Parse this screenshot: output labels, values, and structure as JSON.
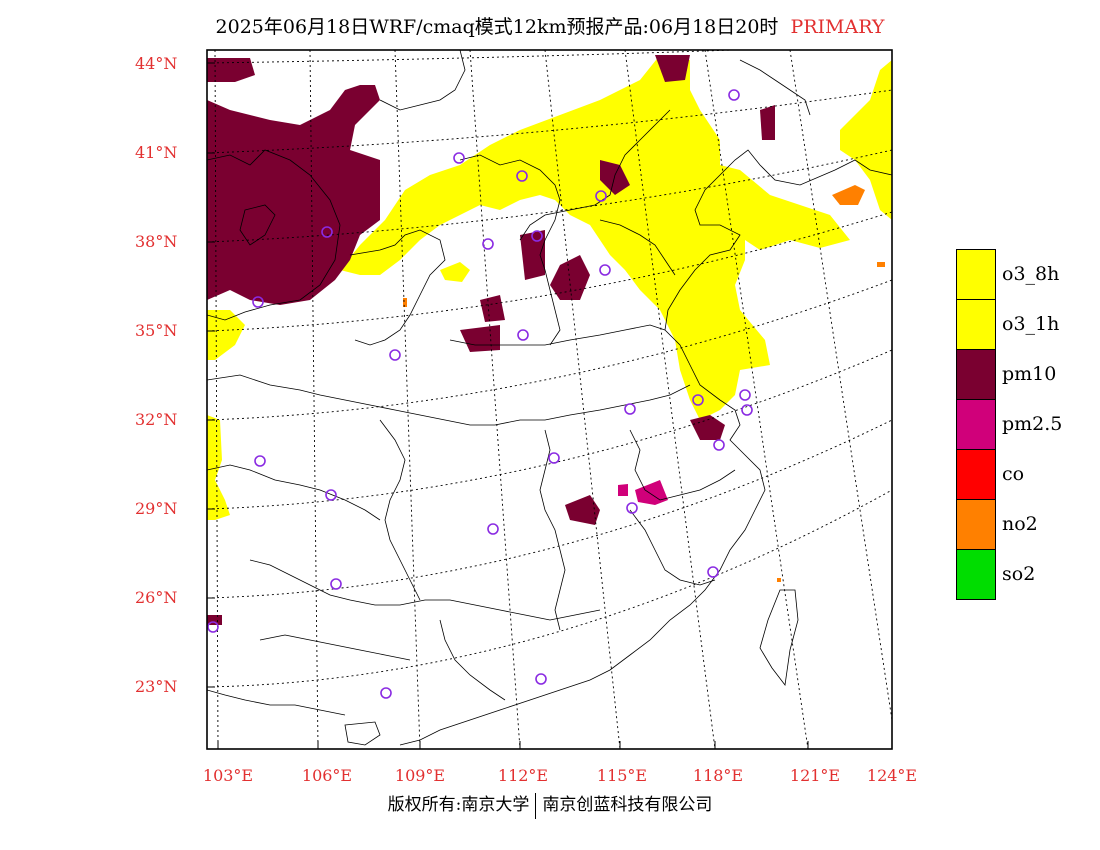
{
  "title": {
    "main": "2025年06月18日WRF/cmaq模式12km预报产品:06月18日20时",
    "tag": "PRIMARY"
  },
  "map": {
    "lat_labels": [
      "44°N",
      "41°N",
      "38°N",
      "35°N",
      "32°N",
      "29°N",
      "26°N",
      "23°N"
    ],
    "lon_labels": [
      "103°E",
      "106°E",
      "109°E",
      "112°E",
      "115°E",
      "118°E",
      "121°E",
      "124°E"
    ]
  },
  "legend": [
    {
      "label": "o3_8h",
      "color": "#ffff00"
    },
    {
      "label": "o3_1h",
      "color": "#ffff00"
    },
    {
      "label": "pm10",
      "color": "#7a0030"
    },
    {
      "label": "pm2.5",
      "color": "#d0007a"
    },
    {
      "label": "co",
      "color": "#ff0000"
    },
    {
      "label": "no2",
      "color": "#ff8000"
    },
    {
      "label": "so2",
      "color": "#00dd00"
    }
  ],
  "colors": {
    "o3": "#ffff00",
    "pm10": "#7a0030",
    "pm25": "#d0007a",
    "no2": "#ff8000",
    "station": "#8a2be2",
    "label": "#e23030"
  },
  "footer": {
    "left": "版权所有:南京大学",
    "right": "南京创蓝科技有限公司"
  }
}
